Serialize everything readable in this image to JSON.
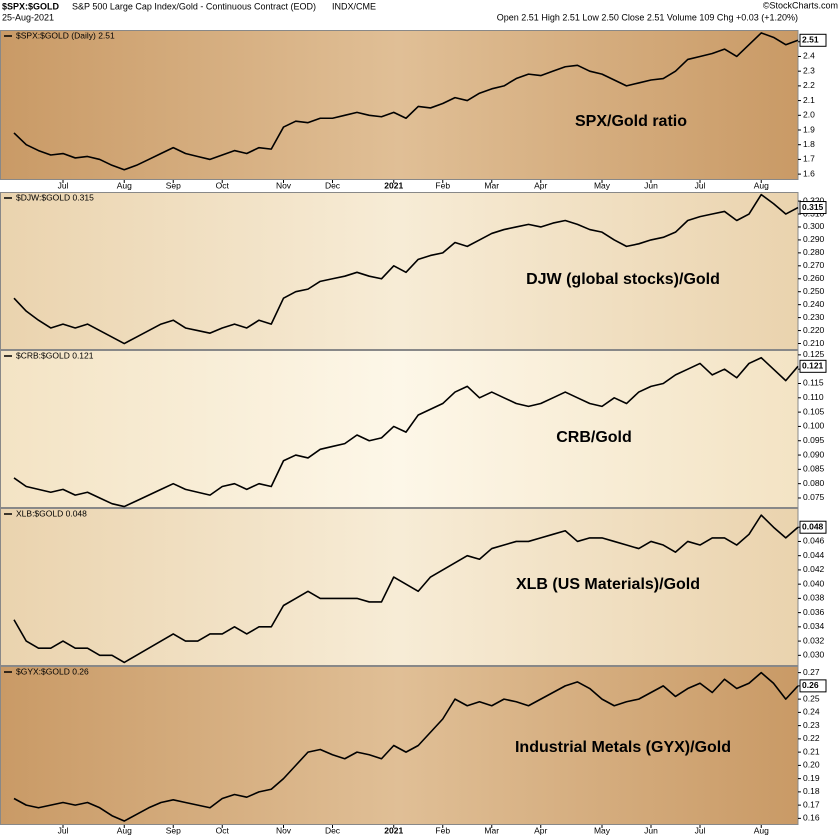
{
  "header": {
    "symbol": "$SPX:$GOLD",
    "description": "S&P 500 Large Cap Index/Gold - Continuous Contract (EOD)",
    "exchange": "INDX/CME",
    "date": "25-Aug-2021",
    "quote": "Open 2.51  High 2.51  Low 2.50  Close 2.51  Volume 109  Chg +0.03 (+1.20%)",
    "credit": "©StockCharts.com"
  },
  "chart_data": [
    {
      "type": "line",
      "title": "$SPX:$GOLD (Daily) 2.51",
      "annotation": "SPX/Gold ratio",
      "color": "#000000",
      "categories": [
        null,
        null,
        null,
        null,
        "Jul",
        null,
        null,
        null,
        null,
        "Aug",
        null,
        null,
        null,
        "Sep",
        null,
        null,
        null,
        "Oct",
        null,
        null,
        null,
        null,
        "Nov",
        null,
        null,
        null,
        "Dec",
        null,
        null,
        null,
        null,
        "2021",
        null,
        null,
        null,
        "Feb",
        null,
        null,
        null,
        "Mar",
        null,
        null,
        null,
        "Apr",
        null,
        null,
        null,
        null,
        "May",
        null,
        null,
        null,
        "Jun",
        null,
        null,
        null,
        "Jul",
        null,
        null,
        null,
        null,
        "Aug",
        null,
        null,
        null
      ],
      "values": [
        1.88,
        1.8,
        1.76,
        1.73,
        1.74,
        1.71,
        1.72,
        1.7,
        1.66,
        1.63,
        1.66,
        1.7,
        1.74,
        1.78,
        1.74,
        1.72,
        1.7,
        1.73,
        1.76,
        1.74,
        1.78,
        1.77,
        1.92,
        1.96,
        1.95,
        1.98,
        1.98,
        2.0,
        2.02,
        2.0,
        1.99,
        2.02,
        1.98,
        2.06,
        2.05,
        2.08,
        2.12,
        2.1,
        2.15,
        2.18,
        2.2,
        2.25,
        2.28,
        2.27,
        2.3,
        2.33,
        2.34,
        2.3,
        2.28,
        2.24,
        2.2,
        2.22,
        2.24,
        2.25,
        2.3,
        2.38,
        2.4,
        2.42,
        2.45,
        2.4,
        2.48,
        2.56,
        2.53,
        2.48,
        2.51
      ],
      "ylim": [
        1.56,
        2.58
      ],
      "yticks": [
        1.6,
        1.7,
        1.8,
        1.9,
        {
          "value": 2,
          "label": "2.0"
        },
        2.1,
        2.2,
        2.3,
        2.4,
        2.5
      ]
    },
    {
      "type": "line",
      "title": "$DJW:$GOLD 0.315",
      "annotation": "DJW (global stocks)/Gold",
      "color": "#000000",
      "values": [
        0.245,
        0.235,
        0.228,
        0.222,
        0.225,
        0.222,
        0.225,
        0.22,
        0.215,
        0.21,
        0.215,
        0.22,
        0.225,
        0.228,
        0.222,
        0.22,
        0.218,
        0.222,
        0.225,
        0.222,
        0.228,
        0.225,
        0.245,
        0.25,
        0.252,
        0.258,
        0.26,
        0.262,
        0.265,
        0.262,
        0.26,
        0.27,
        0.265,
        0.275,
        0.278,
        0.28,
        0.288,
        0.285,
        0.29,
        0.295,
        0.298,
        0.3,
        0.302,
        0.3,
        0.303,
        0.305,
        0.302,
        0.298,
        0.296,
        0.29,
        0.285,
        0.287,
        0.29,
        0.292,
        0.296,
        0.305,
        0.308,
        0.31,
        0.312,
        0.305,
        0.31,
        0.325,
        0.318,
        0.31,
        0.315
      ],
      "ylim": [
        0.205,
        0.327
      ],
      "yticks": [
        {
          "value": 0.21,
          "label": "0.210"
        },
        {
          "value": 0.22,
          "label": "0.220"
        },
        {
          "value": 0.23,
          "label": "0.230"
        },
        {
          "value": 0.24,
          "label": "0.240"
        },
        {
          "value": 0.25,
          "label": "0.250"
        },
        {
          "value": 0.26,
          "label": "0.260"
        },
        {
          "value": 0.27,
          "label": "0.270"
        },
        {
          "value": 0.28,
          "label": "0.280"
        },
        {
          "value": 0.29,
          "label": "0.290"
        },
        {
          "value": 0.3,
          "label": "0.300"
        },
        {
          "value": 0.31,
          "label": "0.310"
        },
        {
          "value": 0.32,
          "label": "0.320"
        }
      ]
    },
    {
      "type": "line",
      "title": "$CRB:$GOLD 0.121",
      "annotation": "CRB/Gold",
      "color": "#000000",
      "values": [
        0.082,
        0.079,
        0.078,
        0.077,
        0.078,
        0.076,
        0.077,
        0.075,
        0.073,
        0.072,
        0.074,
        0.076,
        0.078,
        0.08,
        0.078,
        0.077,
        0.076,
        0.079,
        0.08,
        0.078,
        0.08,
        0.079,
        0.088,
        0.09,
        0.089,
        0.092,
        0.093,
        0.094,
        0.097,
        0.095,
        0.096,
        0.1,
        0.098,
        0.104,
        0.106,
        0.108,
        0.112,
        0.114,
        0.11,
        0.112,
        0.11,
        0.108,
        0.107,
        0.108,
        0.11,
        0.112,
        0.11,
        0.108,
        0.107,
        0.11,
        0.108,
        0.112,
        0.114,
        0.115,
        0.118,
        0.12,
        0.122,
        0.118,
        0.12,
        0.117,
        0.122,
        0.124,
        0.12,
        0.116,
        0.121
      ],
      "ylim": [
        0.0715,
        0.1267
      ],
      "yticks": [
        0.075,
        {
          "value": 0.08,
          "label": "0.080"
        },
        0.085,
        {
          "value": 0.09,
          "label": "0.090"
        },
        0.095,
        {
          "value": 0.1,
          "label": "0.100"
        },
        0.105,
        {
          "value": 0.11,
          "label": "0.110"
        },
        0.115,
        {
          "value": 0.12,
          "label": "0.120"
        },
        0.125
      ]
    },
    {
      "type": "line",
      "title": "XLB:$GOLD 0.048",
      "annotation": "XLB (US Materials)/Gold",
      "color": "#000000",
      "values": [
        0.035,
        0.032,
        0.031,
        0.031,
        0.032,
        0.031,
        0.031,
        0.03,
        0.03,
        0.029,
        0.03,
        0.031,
        0.032,
        0.033,
        0.032,
        0.032,
        0.033,
        0.033,
        0.034,
        0.033,
        0.034,
        0.034,
        0.037,
        0.038,
        0.039,
        0.038,
        0.038,
        0.038,
        0.038,
        0.0375,
        0.0375,
        0.041,
        0.04,
        0.039,
        0.041,
        0.042,
        0.043,
        0.044,
        0.0435,
        0.045,
        0.0455,
        0.046,
        0.046,
        0.0465,
        0.047,
        0.0475,
        0.046,
        0.0465,
        0.0465,
        0.046,
        0.0455,
        0.045,
        0.046,
        0.0455,
        0.0445,
        0.046,
        0.0455,
        0.0465,
        0.0465,
        0.0455,
        0.047,
        0.0497,
        0.048,
        0.0465,
        0.048
      ],
      "ylim": [
        0.0285,
        0.0507
      ],
      "yticks": [
        {
          "value": 0.03,
          "label": "0.030"
        },
        0.032,
        0.034,
        0.036,
        0.038,
        {
          "value": 0.04,
          "label": "0.040"
        },
        0.042,
        0.044,
        0.046,
        0.048
      ]
    },
    {
      "type": "line",
      "title": "$GYX:$GOLD 0.26",
      "annotation": "Industrial Metals (GYX)/Gold",
      "color": "#000000",
      "categories": [
        null,
        null,
        null,
        null,
        "Jul",
        null,
        null,
        null,
        null,
        "Aug",
        null,
        null,
        null,
        "Sep",
        null,
        null,
        null,
        "Oct",
        null,
        null,
        null,
        null,
        "Nov",
        null,
        null,
        null,
        "Dec",
        null,
        null,
        null,
        null,
        "2021",
        null,
        null,
        null,
        "Feb",
        null,
        null,
        null,
        "Mar",
        null,
        null,
        null,
        "Apr",
        null,
        null,
        null,
        null,
        "May",
        null,
        null,
        null,
        "Jun",
        null,
        null,
        null,
        "Jul",
        null,
        null,
        null,
        null,
        "Aug",
        null,
        null,
        null
      ],
      "values": [
        0.175,
        0.17,
        0.168,
        0.17,
        0.172,
        0.17,
        0.172,
        0.168,
        0.162,
        0.158,
        0.163,
        0.168,
        0.172,
        0.174,
        0.172,
        0.17,
        0.168,
        0.175,
        0.178,
        0.176,
        0.18,
        0.182,
        0.19,
        0.2,
        0.21,
        0.212,
        0.208,
        0.205,
        0.21,
        0.208,
        0.205,
        0.215,
        0.21,
        0.215,
        0.225,
        0.235,
        0.25,
        0.245,
        0.248,
        0.245,
        0.25,
        0.248,
        0.245,
        0.25,
        0.255,
        0.26,
        0.263,
        0.258,
        0.25,
        0.245,
        0.248,
        0.25,
        0.255,
        0.26,
        0.252,
        0.258,
        0.262,
        0.255,
        0.265,
        0.258,
        0.262,
        0.27,
        0.262,
        0.25,
        0.26
      ],
      "ylim": [
        0.155,
        0.275
      ],
      "yticks": [
        0.16,
        0.17,
        0.18,
        0.19,
        {
          "value": 0.2,
          "label": "0.20"
        },
        0.21,
        0.22,
        0.23,
        0.24,
        0.25,
        0.26,
        0.27
      ]
    }
  ]
}
